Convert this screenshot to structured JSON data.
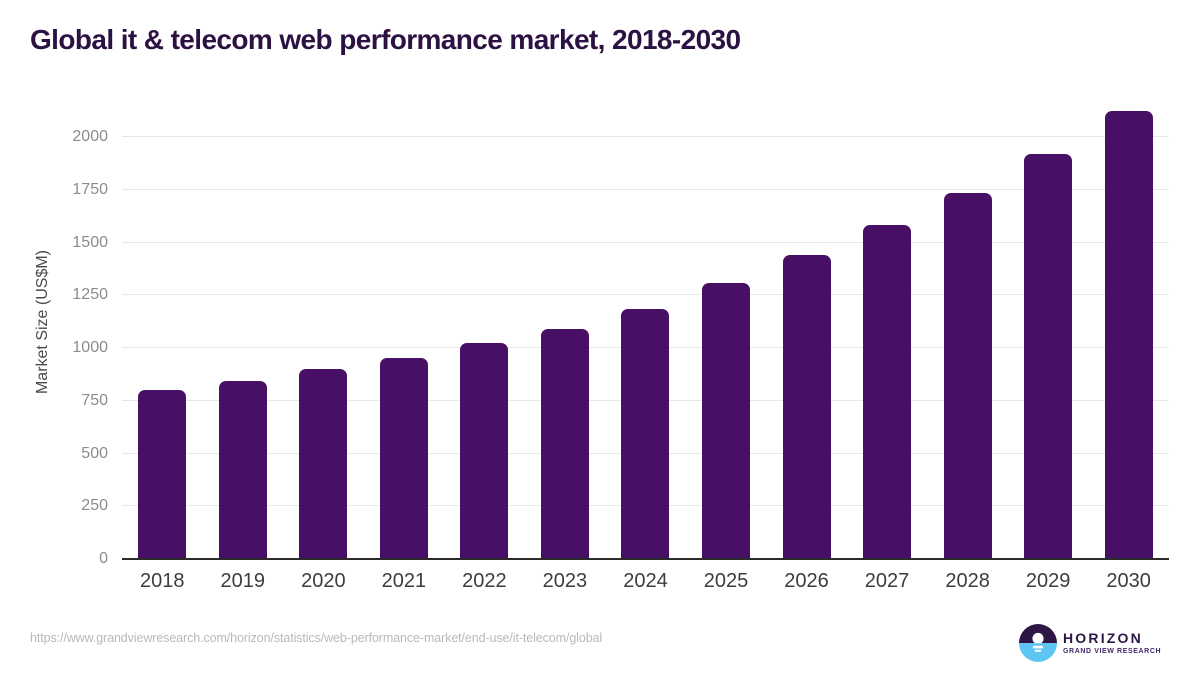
{
  "chart_data": {
    "type": "bar",
    "title": "Global it & telecom web performance market, 2018-2030",
    "categories": [
      "2018",
      "2019",
      "2020",
      "2021",
      "2022",
      "2023",
      "2024",
      "2025",
      "2026",
      "2027",
      "2028",
      "2029",
      "2030"
    ],
    "values": [
      800,
      845,
      900,
      955,
      1025,
      1090,
      1185,
      1310,
      1440,
      1585,
      1735,
      1920,
      2125
    ],
    "xlabel": "",
    "ylabel": "Market Size (US$M)",
    "ylim": [
      0,
      2200
    ],
    "yticks": [
      0,
      250,
      500,
      750,
      1000,
      1250,
      1500,
      1750,
      2000
    ],
    "grid": true,
    "legend": false,
    "bar_color": "#481065",
    "background": "#ffffff"
  },
  "colors": {
    "title": "#2c1143",
    "bar": "#481065",
    "axis_line": "#2b2b2b",
    "gridline": "#e7e7e7",
    "ytick_label": "#8c8c8c",
    "xtick_label": "#3d3d3d",
    "ylabel": "#4a4a4a",
    "url": "#b9b9b9",
    "logo_purple": "#2d1747",
    "logo_blue": "#5ec6f3"
  },
  "footer": {
    "source_url": "https://www.grandviewresearch.com/horizon/statistics/web-performance-market/end-use/it-telecom/global",
    "logo": {
      "name": "HORIZON",
      "subtitle": "GRAND VIEW RESEARCH"
    }
  }
}
